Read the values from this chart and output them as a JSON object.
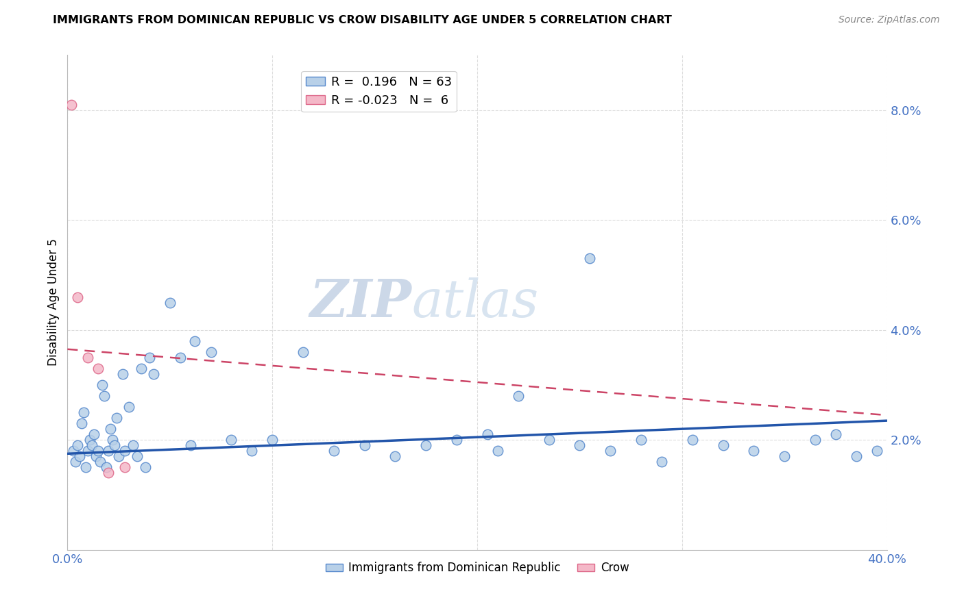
{
  "title": "IMMIGRANTS FROM DOMINICAN REPUBLIC VS CROW DISABILITY AGE UNDER 5 CORRELATION CHART",
  "source": "Source: ZipAtlas.com",
  "ylabel": "Disability Age Under 5",
  "yticks_labels": [
    "2.0%",
    "4.0%",
    "6.0%",
    "8.0%"
  ],
  "ytick_vals": [
    2.0,
    4.0,
    6.0,
    8.0
  ],
  "xlim": [
    0.0,
    40.0
  ],
  "ylim": [
    0.0,
    9.0
  ],
  "legend_blue_r": "0.196",
  "legend_blue_n": "63",
  "legend_pink_r": "-0.023",
  "legend_pink_n": "6",
  "blue_color": "#b8d0e8",
  "blue_edge_color": "#5588cc",
  "blue_line_color": "#2255aa",
  "pink_color": "#f4b8c8",
  "pink_edge_color": "#dd6688",
  "pink_line_color": "#cc4466",
  "blue_scatter_x": [
    0.3,
    0.4,
    0.5,
    0.6,
    0.7,
    0.8,
    0.9,
    1.0,
    1.1,
    1.2,
    1.3,
    1.4,
    1.5,
    1.6,
    1.7,
    1.8,
    1.9,
    2.0,
    2.1,
    2.2,
    2.3,
    2.4,
    2.5,
    2.7,
    2.8,
    3.0,
    3.2,
    3.4,
    3.6,
    3.8,
    4.0,
    4.2,
    5.0,
    5.5,
    6.0,
    6.2,
    7.0,
    8.0,
    9.0,
    10.0,
    11.5,
    13.0,
    14.5,
    16.0,
    17.5,
    19.0,
    20.5,
    21.0,
    22.0,
    23.5,
    25.0,
    26.5,
    28.0,
    29.0,
    30.5,
    32.0,
    33.5,
    35.0,
    36.5,
    37.5,
    38.5,
    39.5,
    25.5
  ],
  "blue_scatter_y": [
    1.8,
    1.6,
    1.9,
    1.7,
    2.3,
    2.5,
    1.5,
    1.8,
    2.0,
    1.9,
    2.1,
    1.7,
    1.8,
    1.6,
    3.0,
    2.8,
    1.5,
    1.8,
    2.2,
    2.0,
    1.9,
    2.4,
    1.7,
    3.2,
    1.8,
    2.6,
    1.9,
    1.7,
    3.3,
    1.5,
    3.5,
    3.2,
    4.5,
    3.5,
    1.9,
    3.8,
    3.6,
    2.0,
    1.8,
    2.0,
    3.6,
    1.8,
    1.9,
    1.7,
    1.9,
    2.0,
    2.1,
    1.8,
    2.8,
    2.0,
    1.9,
    1.8,
    2.0,
    1.6,
    2.0,
    1.9,
    1.8,
    1.7,
    2.0,
    2.1,
    1.7,
    1.8,
    5.3
  ],
  "pink_scatter_x": [
    0.2,
    0.5,
    1.0,
    1.5,
    2.0,
    2.8
  ],
  "pink_scatter_y": [
    8.1,
    4.6,
    3.5,
    3.3,
    1.4,
    1.5
  ],
  "blue_trendline_x": [
    0.0,
    40.0
  ],
  "blue_trendline_y": [
    1.75,
    2.35
  ],
  "pink_trendline_x": [
    0.0,
    40.0
  ],
  "pink_trendline_y": [
    3.65,
    2.45
  ],
  "watermark_line1": "ZIP",
  "watermark_line2": "atlas",
  "watermark_color": "#ccd8e8",
  "xtick_positions": [
    0.0,
    10.0,
    20.0,
    30.0,
    40.0
  ],
  "xtick_labels": [
    "0.0%",
    "",
    "",
    "",
    "40.0%"
  ],
  "grid_color": "#dddddd",
  "grid_linestyle": "--",
  "background_color": "#ffffff",
  "legend_fontsize": 13,
  "title_fontsize": 11.5,
  "source_fontsize": 10,
  "tick_fontsize": 13,
  "ylabel_fontsize": 12,
  "watermark_fontsize_zip": 55,
  "watermark_fontsize_atlas": 55
}
